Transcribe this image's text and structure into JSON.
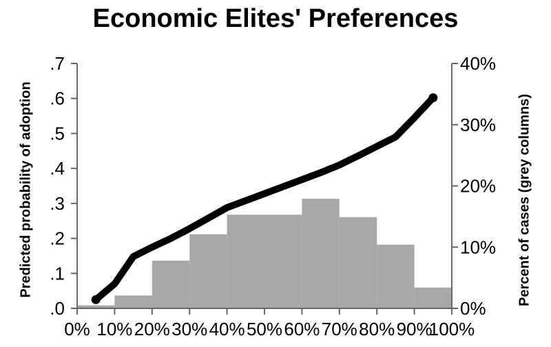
{
  "title": "Economic Elites' Preferences",
  "chart_data": {
    "type": "combo-line-bar",
    "title": "Economic Elites' Preferences",
    "grid": false,
    "legend": false,
    "x_axis": {
      "range": [
        0,
        100
      ],
      "tick_step": 10,
      "tick_labels": [
        "0%",
        "10%",
        "20%",
        "30%",
        "40%",
        "50%",
        "60%",
        "70%",
        "80%",
        "90%",
        "100%"
      ]
    },
    "left_axis": {
      "label": "Predicted probability of adoption",
      "range": [
        0,
        0.7
      ],
      "tick_step": 0.1,
      "tick_labels": [
        ".0",
        ".1",
        ".2",
        ".3",
        ".4",
        ".5",
        ".6",
        ".7"
      ]
    },
    "right_axis": {
      "label": "Percent of cases (grey columns)",
      "range": [
        0,
        40
      ],
      "tick_step": 10,
      "tick_labels": [
        "0%",
        "10%",
        "20%",
        "30%",
        "40%"
      ]
    },
    "series": [
      {
        "name": "Predicted probability of adoption",
        "type": "line",
        "axis": "left",
        "color": "#000000",
        "points": [
          [
            5,
            0.025
          ],
          [
            10,
            0.07
          ],
          [
            15,
            0.148
          ],
          [
            20,
            0.175
          ],
          [
            25,
            0.2
          ],
          [
            30,
            0.228
          ],
          [
            35,
            0.258
          ],
          [
            40,
            0.288
          ],
          [
            45,
            0.308
          ],
          [
            50,
            0.328
          ],
          [
            55,
            0.348
          ],
          [
            60,
            0.368
          ],
          [
            65,
            0.388
          ],
          [
            70,
            0.41
          ],
          [
            75,
            0.436
          ],
          [
            80,
            0.463
          ],
          [
            85,
            0.49
          ],
          [
            90,
            0.545
          ],
          [
            95,
            0.602
          ]
        ],
        "endpoint_dots": true
      },
      {
        "name": "Percent of cases (grey columns)",
        "type": "bar",
        "axis": "right",
        "color": "#a8a8a8",
        "bin_edges": [
          0,
          10,
          20,
          30,
          40,
          50,
          60,
          70,
          80,
          90,
          100
        ],
        "values": [
          0.5,
          2.1,
          7.8,
          12.1,
          15.3,
          15.3,
          17.9,
          14.9,
          10.4,
          3.4
        ]
      }
    ]
  },
  "colors": {
    "bar": "#a8a8a8",
    "line": "#000000",
    "axis": "#666666",
    "text": "#000000",
    "background": "#ffffff"
  }
}
